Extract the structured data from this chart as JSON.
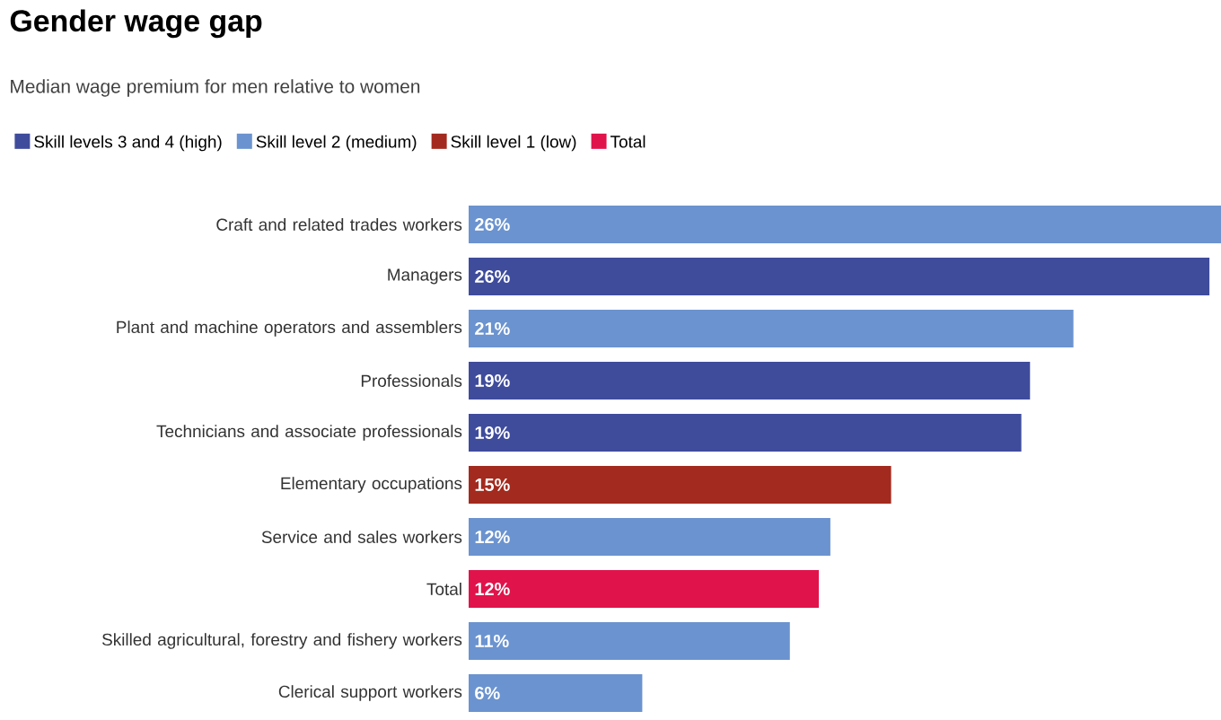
{
  "chart_data": {
    "type": "bar",
    "orientation": "horizontal",
    "title": "Gender wage gap",
    "subtitle": "Median wage premium for men relative to women",
    "categories": [
      "Craft and related trades workers",
      "Managers",
      "Plant and machine operators and assemblers",
      "Professionals",
      "Technicians and associate professionals",
      "Elementary occupations",
      "Service and sales workers",
      "Total",
      "Skilled agricultural, forestry and fishery workers",
      "Clerical support workers"
    ],
    "series": [
      {
        "name": "Skill levels 3 and 4 (high)",
        "color": "#3f4c9c",
        "values": [
          null,
          25.6,
          null,
          19.4,
          19.1,
          null,
          null,
          null,
          null,
          null
        ],
        "value_labels": [
          null,
          "26%",
          null,
          "19%",
          "19%",
          null,
          null,
          null,
          null,
          null
        ]
      },
      {
        "name": "Skill level 2 (medium)",
        "color": "#6b93cf",
        "values": [
          26.0,
          null,
          20.9,
          null,
          null,
          null,
          12.5,
          null,
          11.1,
          6.0
        ],
        "value_labels": [
          "26%",
          null,
          "21%",
          null,
          null,
          null,
          "12%",
          null,
          "11%",
          "6%"
        ]
      },
      {
        "name": "Skill level 1 (low)",
        "color": "#a32a1e",
        "values": [
          null,
          null,
          null,
          null,
          null,
          14.6,
          null,
          null,
          null,
          null
        ],
        "value_labels": [
          null,
          null,
          null,
          null,
          null,
          "15%",
          null,
          null,
          null,
          null
        ]
      },
      {
        "name": "Total",
        "color": "#e0134a",
        "values": [
          null,
          null,
          null,
          null,
          null,
          null,
          null,
          12.1,
          null,
          null
        ],
        "value_labels": [
          null,
          null,
          null,
          null,
          null,
          null,
          null,
          "12%",
          null,
          null
        ]
      }
    ],
    "legend": "top"
  }
}
